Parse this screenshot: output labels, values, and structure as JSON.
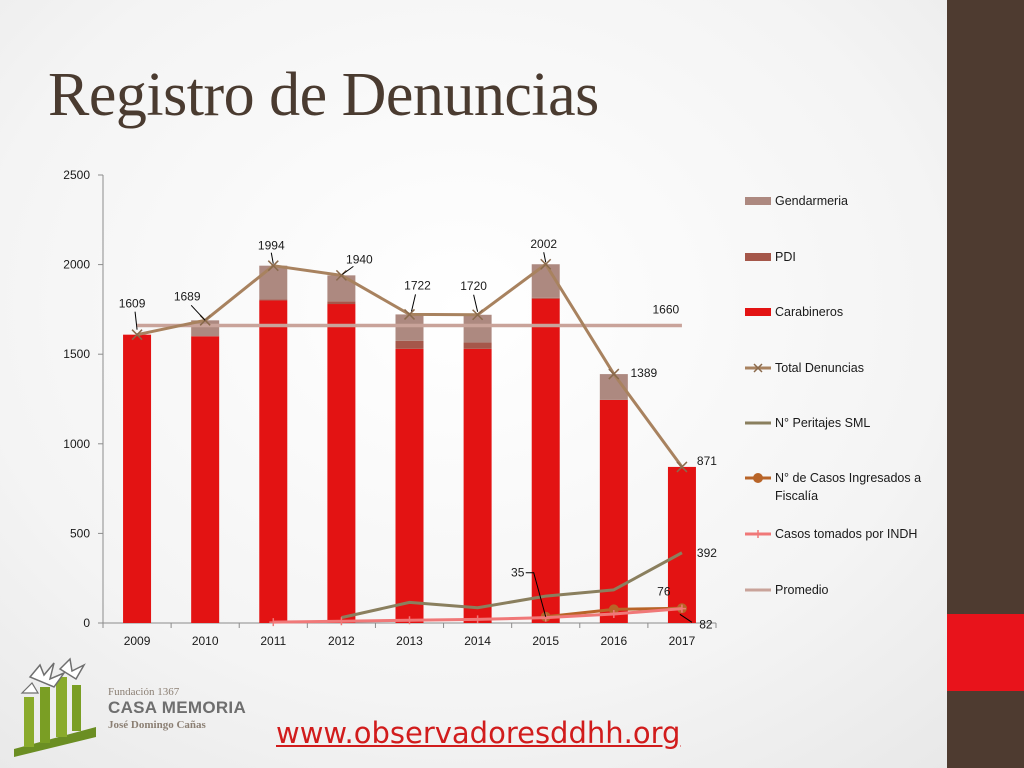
{
  "slide": {
    "title": "Registro de Denuncias",
    "url": "www.observadoresddhh.org",
    "logo": {
      "line1": "Fundación 1367",
      "line2": "CASA MEMORIA",
      "line3": "José Domingo Cañas"
    },
    "colors": {
      "sidebar": "#4e3b30",
      "accent": "#e8131b",
      "title": "#4a3b30",
      "url": "#d11c1c"
    }
  },
  "chart_data": {
    "type": "bar",
    "title": "",
    "xlabel": "",
    "ylabel": "",
    "ylim": [
      0,
      2500
    ],
    "yticks": [
      0,
      500,
      1000,
      1500,
      2000,
      2500
    ],
    "categories": [
      "2009",
      "2010",
      "2011",
      "2012",
      "2013",
      "2014",
      "2015",
      "2016",
      "2017"
    ],
    "legend_position": "right",
    "grid": false,
    "stacked_bars": [
      {
        "name": "Carabineros",
        "color": "#e31313",
        "values": [
          1609,
          1600,
          1800,
          1780,
          1530,
          1530,
          1810,
          1245,
          871
        ]
      },
      {
        "name": "PDI",
        "color": "#a5574a",
        "values": [
          0,
          0,
          5,
          15,
          45,
          35,
          5,
          0,
          0
        ]
      },
      {
        "name": "Gendarmeria",
        "color": "#ad8980",
        "values": [
          0,
          89,
          189,
          145,
          147,
          155,
          187,
          144,
          0
        ]
      }
    ],
    "lines": [
      {
        "name": "Total Denuncias",
        "color": "#a8825f",
        "marker": "x",
        "values": [
          1609,
          1689,
          1994,
          1940,
          1722,
          1720,
          2002,
          1389,
          871
        ]
      },
      {
        "name": "N° Peritajes SML",
        "color": "#8a7f5e",
        "marker": "none",
        "values": [
          null,
          null,
          null,
          30,
          115,
          85,
          150,
          185,
          392
        ]
      },
      {
        "name": "N° de Casos Ingresados a Fiscalía",
        "color": "#b86428",
        "marker": "circle",
        "values": [
          null,
          null,
          null,
          null,
          null,
          null,
          35,
          76,
          82
        ]
      },
      {
        "name": "Casos tomados por INDH",
        "color": "#f07878",
        "marker": "plus",
        "values": [
          null,
          null,
          5,
          10,
          15,
          20,
          30,
          50,
          80
        ]
      },
      {
        "name": "Promedio",
        "color": "#c9a39a",
        "marker": "none",
        "values": [
          1660,
          1660,
          1660,
          1660,
          1660,
          1660,
          1660,
          1660,
          1660
        ]
      }
    ],
    "legend_order": [
      "Gendarmeria",
      "PDI",
      "Carabineros",
      "Total Denuncias",
      "N° Peritajes SML",
      "N° de Casos Ingresados a Fiscalía",
      "Casos tomados por INDH",
      "Promedio"
    ],
    "data_labels": [
      {
        "text": "1609",
        "series": "Total Denuncias",
        "index": 0
      },
      {
        "text": "1689",
        "series": "Total Denuncias",
        "index": 1
      },
      {
        "text": "1994",
        "series": "Total Denuncias",
        "index": 2
      },
      {
        "text": "1940",
        "series": "Total Denuncias",
        "index": 3
      },
      {
        "text": "1722",
        "series": "Total Denuncias",
        "index": 4
      },
      {
        "text": "1720",
        "series": "Total Denuncias",
        "index": 5
      },
      {
        "text": "2002",
        "series": "Total Denuncias",
        "index": 6
      },
      {
        "text": "1389",
        "series": "Total Denuncias",
        "index": 7
      },
      {
        "text": "871",
        "series": "Total Denuncias",
        "index": 8
      },
      {
        "text": "1660",
        "series": "Promedio",
        "index": 7
      },
      {
        "text": "392",
        "series": "N° Peritajes SML",
        "index": 8
      },
      {
        "text": "35",
        "series": "N° de Casos Ingresados a Fiscalía",
        "index": 6
      },
      {
        "text": "76",
        "series": "N° de Casos Ingresados a Fiscalía",
        "index": 7
      },
      {
        "text": "82",
        "series": "N° de Casos Ingresados a Fiscalía",
        "index": 8
      }
    ]
  }
}
